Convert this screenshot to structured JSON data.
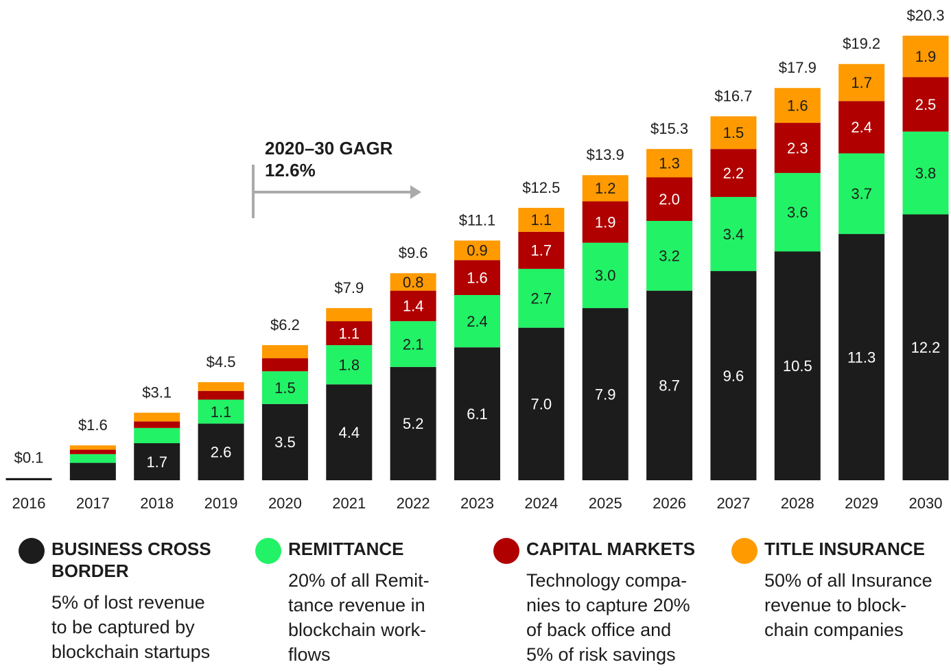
{
  "chart_data": {
    "type": "bar",
    "stacked": true,
    "annotation": [
      "2020–30 GAGR",
      "12.6%"
    ],
    "categories": [
      "2016",
      "2017",
      "2018",
      "2019",
      "2020",
      "2021",
      "2022",
      "2023",
      "2024",
      "2025",
      "2026",
      "2027",
      "2028",
      "2029",
      "2030"
    ],
    "total_labels": [
      "$0.1",
      "$1.6",
      "$3.1",
      "$4.5",
      "$6.2",
      "$7.9",
      "$9.6",
      "$11.1",
      "$12.5",
      "$13.9",
      "$15.3",
      "$16.7",
      "$17.9",
      "$19.2",
      "$20.3"
    ],
    "series": [
      {
        "name": "BUSINESS CROSS BORDER",
        "color": "#1c1c1c",
        "label_color": "#ffffff",
        "description": [
          "5% of lost revenue",
          "to be captured by",
          "blockchain startups"
        ],
        "values": [
          0.1,
          0.8,
          1.7,
          2.6,
          3.5,
          4.4,
          5.2,
          6.1,
          7.0,
          7.9,
          8.7,
          9.6,
          10.5,
          11.3,
          12.2
        ],
        "value_labels": [
          null,
          null,
          "1.7",
          "2.6",
          "3.5",
          "4.4",
          "5.2",
          "6.1",
          "7.0",
          "7.9",
          "8.7",
          "9.6",
          "10.5",
          "11.3",
          "12.2"
        ]
      },
      {
        "name": "REMITTANCE",
        "color": "#22f266",
        "label_color": "#1c1c1c",
        "description": [
          "20% of all Remit-",
          "tance revenue in",
          "blockchain work-",
          "flows"
        ],
        "values": [
          0,
          0.4,
          0.7,
          1.1,
          1.5,
          1.8,
          2.1,
          2.4,
          2.7,
          3.0,
          3.2,
          3.4,
          3.6,
          3.7,
          3.8
        ],
        "value_labels": [
          null,
          null,
          null,
          "1.1",
          "1.5",
          "1.8",
          "2.1",
          "2.4",
          "2.7",
          "3.0",
          "3.2",
          "3.4",
          "3.6",
          "3.7",
          "3.8"
        ]
      },
      {
        "name": "CAPITAL MARKETS",
        "color": "#b00000",
        "label_color": "#ffffff",
        "description": [
          "Technology compa-",
          "nies to capture 20%",
          "of back office and",
          "5% of risk savings"
        ],
        "values": [
          0,
          0.2,
          0.3,
          0.4,
          0.6,
          1.1,
          1.4,
          1.6,
          1.7,
          1.9,
          2.0,
          2.2,
          2.3,
          2.4,
          2.5
        ],
        "value_labels": [
          null,
          null,
          null,
          null,
          null,
          "1.1",
          "1.4",
          "1.6",
          "1.7",
          "1.9",
          "2.0",
          "2.2",
          "2.3",
          "2.4",
          "2.5"
        ]
      },
      {
        "name": "TITLE INSURANCE",
        "color": "#ff9a00",
        "label_color": "#1c1c1c",
        "description": [
          "50% of all Insurance",
          "revenue to block-",
          "chain companies"
        ],
        "values": [
          0,
          0.2,
          0.4,
          0.4,
          0.6,
          0.6,
          0.8,
          0.9,
          1.1,
          1.2,
          1.3,
          1.5,
          1.6,
          1.7,
          1.9
        ],
        "value_labels": [
          null,
          null,
          null,
          null,
          null,
          null,
          "0.8",
          "0.9",
          "1.1",
          "1.2",
          "1.3",
          "1.5",
          "1.6",
          "1.7",
          "1.9"
        ]
      }
    ]
  }
}
